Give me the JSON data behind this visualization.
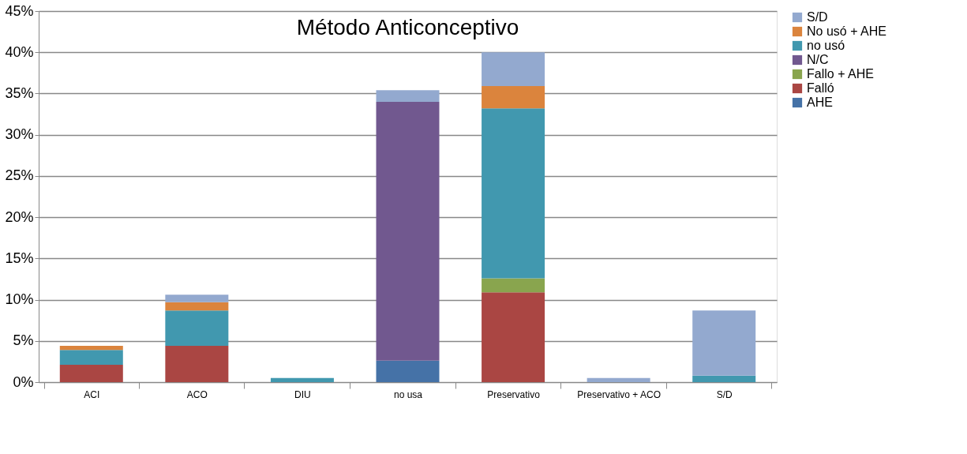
{
  "chart_data": {
    "type": "bar",
    "title": "Método Anticonceptivo",
    "stacked": true,
    "categories": [
      "ACI",
      "ACO",
      "DIU",
      "no usa",
      "Preservativo",
      "Preservativo + ACO",
      "S/D"
    ],
    "series": [
      {
        "name": "AHE",
        "color": "#4572a7",
        "values": [
          null,
          null,
          null,
          2.6,
          null,
          null,
          null
        ]
      },
      {
        "name": "Falló",
        "color": "#aa4643",
        "values": [
          2.1,
          4.4,
          null,
          null,
          10.9,
          null,
          null
        ]
      },
      {
        "name": "Fallo + AHE",
        "color": "#89a54e",
        "values": [
          null,
          null,
          null,
          null,
          1.7,
          null,
          null
        ]
      },
      {
        "name": "N/C",
        "color": "#71588f",
        "values": [
          null,
          null,
          null,
          31.4,
          null,
          null,
          null
        ]
      },
      {
        "name": "no usó",
        "color": "#4198af",
        "values": [
          1.8,
          4.3,
          0.5,
          null,
          20.6,
          null,
          0.8
        ]
      },
      {
        "name": "No usó + AHE",
        "color": "#db843d",
        "values": [
          0.5,
          1.0,
          null,
          null,
          2.7,
          null,
          null
        ]
      },
      {
        "name": "S/D",
        "color": "#93a9cf",
        "values": [
          null,
          0.9,
          null,
          1.4,
          4.1,
          0.5,
          7.9
        ]
      }
    ],
    "ylim": [
      0,
      45
    ],
    "yticks": [
      {
        "value": 0,
        "label": "0%"
      },
      {
        "value": 5,
        "label": "5%"
      },
      {
        "value": 10,
        "label": "10%"
      },
      {
        "value": 15,
        "label": "15%"
      },
      {
        "value": 20,
        "label": "20%"
      },
      {
        "value": 25,
        "label": "25%"
      },
      {
        "value": 30,
        "label": "30%"
      },
      {
        "value": 35,
        "label": "35%"
      },
      {
        "value": 40,
        "label": "40%"
      },
      {
        "value": 45,
        "label": "45%"
      }
    ],
    "grid": "y",
    "legend": "right"
  }
}
